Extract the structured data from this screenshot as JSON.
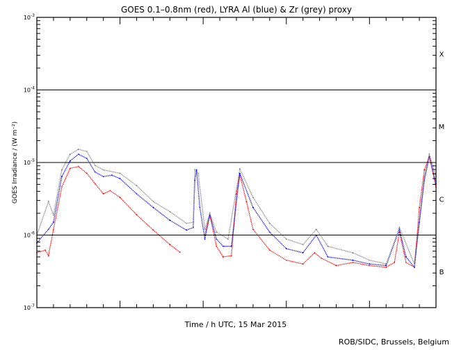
{
  "chart_data": {
    "type": "line",
    "title": "GOES 0.1–0.8nm (red), LYRA Al (blue) & Zr (grey) proxy",
    "xlabel": "Time / h UTC, 15 Mar 2015",
    "ylabel": "GOES Irradiance / (W m⁻²)",
    "xlim": [
      0,
      24
    ],
    "ylim": [
      1e-07,
      0.001
    ],
    "yscale": "log",
    "x_ticks": [
      "0",
      "5",
      "10",
      "15",
      "20"
    ],
    "x_tick_values": [
      0,
      5,
      10,
      15,
      20
    ],
    "y_ticks": [
      {
        "base": "10",
        "exp": "-3",
        "value": 0.001
      },
      {
        "base": "10",
        "exp": "-4",
        "value": 0.0001
      },
      {
        "base": "10",
        "exp": "-5",
        "value": 1e-05
      },
      {
        "base": "10",
        "exp": "-6",
        "value": 1e-06
      },
      {
        "base": "10",
        "exp": "-7",
        "value": 1e-07
      }
    ],
    "reference_lines": [
      0.0001,
      1e-05,
      1e-06
    ],
    "flare_classes": [
      {
        "label": "X",
        "value": 0.000316
      },
      {
        "label": "M",
        "value": 3.16e-05
      },
      {
        "label": "C",
        "value": 3.16e-06
      },
      {
        "label": "B",
        "value": 3.16e-07
      }
    ],
    "series": [
      {
        "name": "GOES 0.1-0.8nm",
        "color": "#ff0000",
        "x": [
          0,
          0.5,
          0.7,
          1.0,
          1.5,
          2.0,
          2.5,
          3.0,
          3.5,
          4.0,
          4.4,
          5.0,
          6,
          7,
          8,
          8.6,
          null,
          10.1,
          10.4,
          10.8,
          11.2,
          11.7,
          12.0,
          12.2,
          12.6,
          13,
          14,
          15,
          16,
          16.7,
          17.1,
          18,
          19,
          20,
          21,
          21.5,
          21.8,
          22.2,
          22.7,
          23.0,
          23.3,
          23.6,
          24
        ],
        "values": [
          5.7e-07,
          6.2e-07,
          5.2e-07,
          1.2e-06,
          4.6e-06,
          8.3e-06,
          8.8e-06,
          7.1e-06,
          5.1e-06,
          3.7e-06,
          4.1e-06,
          3.3e-06,
          1.9e-06,
          1.17e-06,
          7.4e-07,
          5.8e-07,
          null,
          1e-06,
          1.9e-06,
          7e-07,
          5e-07,
          5.2e-07,
          3.7e-06,
          6.8e-06,
          2.9e-06,
          1.2e-06,
          6.2e-07,
          4.5e-07,
          4e-07,
          5.7e-07,
          4.8e-07,
          3.8e-07,
          4.2e-07,
          3.8e-07,
          3.6e-07,
          4.2e-07,
          1.1e-06,
          4.2e-07,
          3.6e-07,
          2.4e-06,
          7.9e-06,
          1.22e-05,
          4.6e-06
        ]
      },
      {
        "name": "LYRA Al proxy",
        "color": "#0000ff",
        "x": [
          0,
          0.7,
          1,
          1.5,
          2,
          2.5,
          3,
          3.5,
          4,
          4.5,
          5,
          6,
          7,
          8,
          9,
          9.4,
          9.5,
          9.6,
          9.8,
          10.1,
          10.4,
          10.8,
          11.2,
          11.7,
          12.2,
          13,
          14,
          15,
          16,
          16.8,
          17.5,
          19,
          20,
          21,
          21.8,
          22.2,
          22.7,
          23,
          23.3,
          23.6,
          24
        ],
        "values": [
          7.8e-07,
          1.2e-06,
          1.5e-06,
          6.4e-06,
          1.05e-05,
          1.3e-05,
          1.14e-05,
          7.4e-06,
          6.4e-06,
          6.7e-06,
          6e-06,
          3.7e-06,
          2.4e-06,
          1.6e-06,
          1.17e-06,
          1.27e-06,
          5.7e-06,
          7.9e-06,
          2.4e-06,
          8.8e-07,
          1.9e-06,
          8.8e-07,
          7e-07,
          7e-07,
          7.1e-06,
          2.4e-06,
          1.1e-06,
          6.5e-07,
          5.7e-07,
          1e-06,
          5e-07,
          4.5e-07,
          4e-07,
          3.8e-07,
          1.2e-06,
          5e-07,
          3.6e-07,
          1.5e-06,
          5.7e-06,
          1.22e-05,
          5.1e-06
        ]
      },
      {
        "name": "LYRA Zr proxy",
        "color": "#808080",
        "x": [
          0,
          0.7,
          1,
          1.5,
          2,
          2.5,
          3,
          3.5,
          4,
          5,
          6,
          7,
          8,
          9,
          9.4,
          9.5,
          9.7,
          10.1,
          10.4,
          10.8,
          11.5,
          12.2,
          13,
          14,
          15,
          16,
          16.8,
          17.5,
          19,
          20,
          21,
          21.8,
          22.7,
          23.3,
          23.6,
          24
        ],
        "values": [
          1e-06,
          2.9e-06,
          1.9e-06,
          7.9e-06,
          1.3e-05,
          1.52e-05,
          1.42e-05,
          9.1e-06,
          7.9e-06,
          7.1e-06,
          4.8e-06,
          2.9e-06,
          2.1e-06,
          1.45e-06,
          1.5e-06,
          7.9e-06,
          7.1e-06,
          1.2e-06,
          2e-06,
          1.1e-06,
          8.8e-07,
          8.2e-06,
          3.3e-06,
          1.45e-06,
          8.8e-07,
          7.4e-07,
          1.2e-06,
          7e-07,
          5.7e-07,
          4.5e-07,
          4e-07,
          1.27e-06,
          4e-07,
          6.4e-06,
          1.3e-05,
          6.4e-06
        ]
      }
    ],
    "grid": false,
    "legend": "none (colors described in title)"
  },
  "footer": "ROB/SIDC, Brussels, Belgium"
}
